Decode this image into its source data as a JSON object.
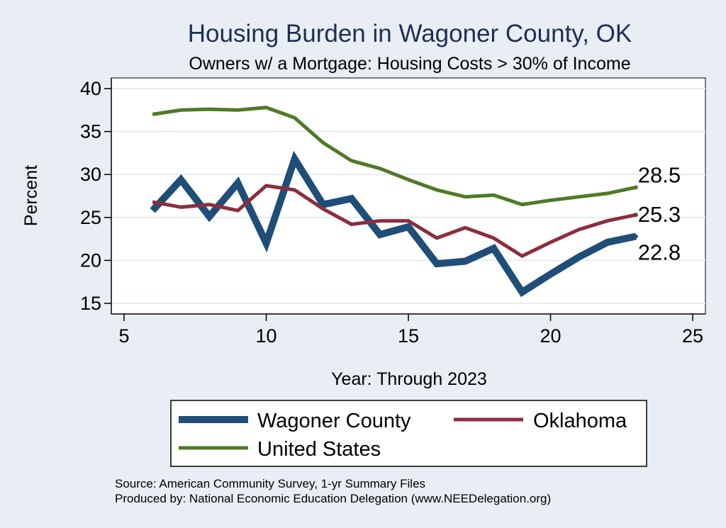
{
  "chart_data": {
    "type": "line",
    "title": "Housing Burden in Wagoner County, OK",
    "subtitle": "Owners w/ a Mortgage: Housing Costs > 30% of Income",
    "xlabel": "Year: Through 2023",
    "ylabel": "Percent",
    "xlim": [
      5,
      25
    ],
    "ylim": [
      15,
      40
    ],
    "x_ticks": [
      5,
      10,
      15,
      20,
      25
    ],
    "y_ticks": [
      15,
      20,
      25,
      30,
      35,
      40
    ],
    "grid": true,
    "legend_position": "bottom",
    "series": [
      {
        "name": "Wagoner County",
        "color": "#1f4e79",
        "x": [
          6,
          7,
          8,
          9,
          10,
          11,
          12,
          13,
          14,
          15,
          16,
          17,
          18,
          19,
          20,
          21,
          22,
          23
        ],
        "y": [
          25.8,
          29.4,
          25.1,
          29.0,
          22.0,
          31.8,
          26.5,
          27.2,
          23.0,
          23.9,
          19.6,
          19.9,
          21.4,
          16.3,
          18.4,
          20.4,
          22.1,
          22.8
        ],
        "end_label": "22.8"
      },
      {
        "name": "Oklahoma",
        "color": "#8b2e3c",
        "x": [
          6,
          7,
          8,
          9,
          10,
          11,
          12,
          13,
          14,
          15,
          16,
          17,
          18,
          19,
          20,
          21,
          22,
          23
        ],
        "y": [
          26.8,
          26.2,
          26.5,
          25.8,
          28.7,
          28.2,
          26.0,
          24.2,
          24.6,
          24.6,
          22.6,
          23.8,
          22.6,
          20.5,
          22.1,
          23.6,
          24.6,
          25.3
        ],
        "end_label": "25.3"
      },
      {
        "name": "United States",
        "color": "#4f7a28",
        "x": [
          6,
          7,
          8,
          9,
          10,
          11,
          12,
          13,
          14,
          15,
          16,
          17,
          18,
          19,
          20,
          21,
          22,
          23
        ],
        "y": [
          37.0,
          37.5,
          37.6,
          37.5,
          37.8,
          36.6,
          33.7,
          31.6,
          30.7,
          29.4,
          28.2,
          27.4,
          27.6,
          26.5,
          27.0,
          27.4,
          27.8,
          28.5
        ],
        "end_label": "28.5"
      }
    ],
    "notes": [
      "Source: American Community Survey, 1-yr Summary Files",
      "Produced by: National Economic Education Delegation (www.NEEDelegation.org)"
    ]
  }
}
